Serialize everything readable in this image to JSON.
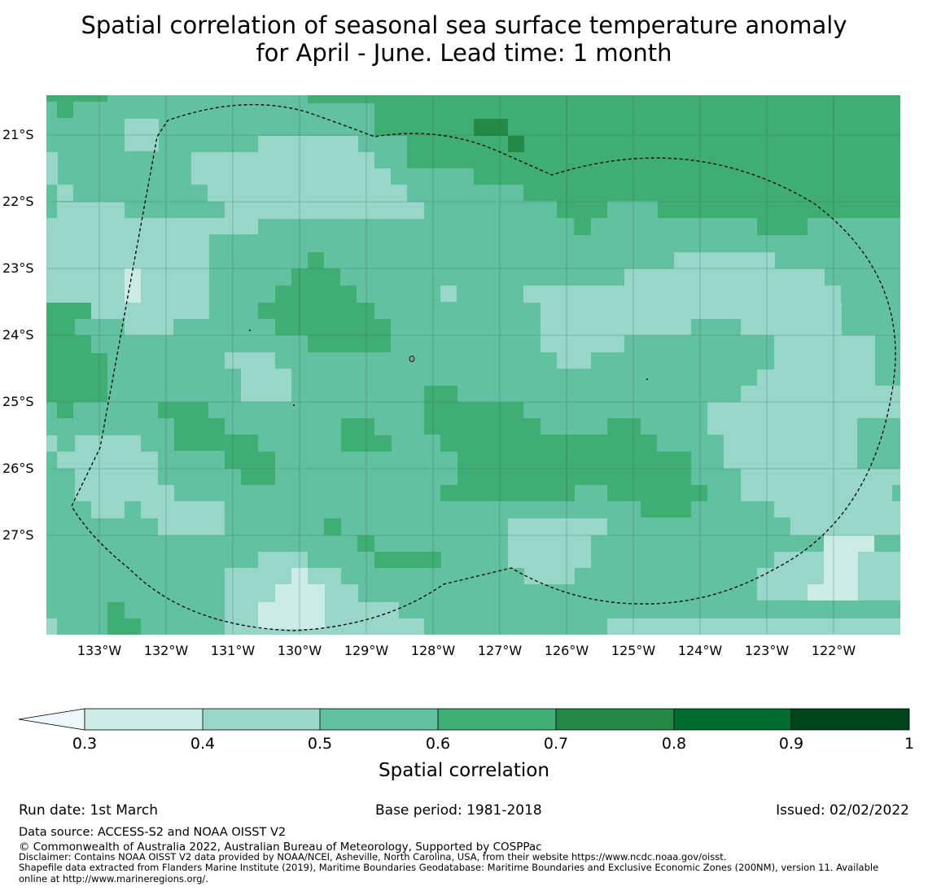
{
  "title": {
    "line1": "Spatial correlation of seasonal sea surface temperature anomaly",
    "line2": "for April - June. Lead time: 1 month"
  },
  "map": {
    "lat_labels": [
      "21°S",
      "22°S",
      "23°S",
      "24°S",
      "25°S",
      "26°S",
      "27°S"
    ],
    "lon_labels": [
      "133°W",
      "132°W",
      "131°W",
      "130°W",
      "129°W",
      "128°W",
      "127°W",
      "126°W",
      "125°W",
      "124°W",
      "123°W",
      "122°W"
    ],
    "colors": {
      "c03": "#ccece3",
      "c04": "#98d7c7",
      "c05": "#62c1a0",
      "c06": "#40ad73",
      "c07": "#228a46",
      "c08": "#006b2e",
      "c09": "#00441b",
      "below": "#edf8fb"
    }
  },
  "colorbar": {
    "ticks": [
      "0.3",
      "0.4",
      "0.5",
      "0.6",
      "0.7",
      "0.8",
      "0.9",
      "1"
    ],
    "label": "Spatial correlation"
  },
  "footer": {
    "run_date": "Run date: 1st March",
    "base_period": "Base period: 1981-2018",
    "issued": "Issued: 02/02/2022",
    "data_source": "Data source: ACCESS-S2 and NOAA OISST V2",
    "copyright": "© Commonwealth of Australia 2022, Australian Bureau of Meteorology, Supported by COSPPac",
    "disclaimer": "Disclaimer: Contains NOAA OISST V2 data provided by NOAA/NCEI, Asheville, North Carolina, USA, from their website https://www.ncdc.noaa.gov/oisst.",
    "shapefile1": "Shapefile data extracted from Flanders Marine Institute (2019), Maritime Boundaries Geodatabase: Maritime Boundaries and Exclusive Economic Zones (200NM), version 11. Available",
    "shapefile2": "online at http://www.marineregions.org/."
  }
}
